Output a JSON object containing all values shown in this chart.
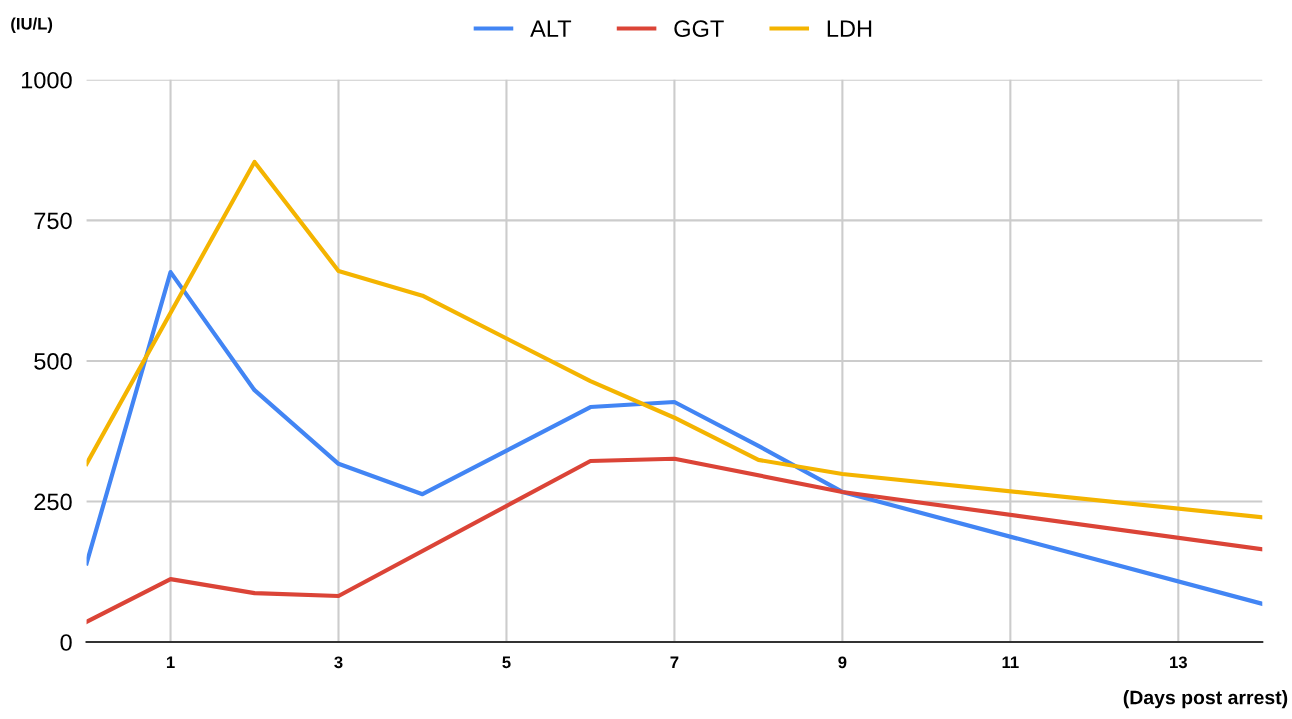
{
  "chart_data": {
    "type": "line",
    "ylabel": "(IU/L)",
    "xlabel": "(Days post arrest)",
    "xlim": [
      0,
      14
    ],
    "xticks": [
      1,
      3,
      5,
      7,
      9,
      11,
      13
    ],
    "ylim": [
      0,
      1000
    ],
    "yticks": [
      0,
      250,
      500,
      750,
      1000
    ],
    "grid": true,
    "legend": "top",
    "marker": "none",
    "line_style": "solid",
    "series": [
      {
        "name": "ALT",
        "color": "#4285f4",
        "x": [
          0,
          1,
          2,
          3,
          4,
          6,
          7,
          8,
          9,
          14
        ],
        "values": [
          140,
          658,
          448,
          317,
          263,
          418,
          427,
          349,
          267,
          68
        ]
      },
      {
        "name": "GGT",
        "color": "#db4437",
        "x": [
          0,
          1,
          2,
          3,
          6,
          7,
          9,
          14
        ],
        "values": [
          36,
          112,
          87,
          82,
          322,
          326,
          267,
          165
        ]
      },
      {
        "name": "LDH",
        "color": "#f4b400",
        "x": [
          0,
          2,
          3,
          4,
          6,
          7,
          8,
          9,
          14
        ],
        "values": [
          317,
          854,
          660,
          616,
          464,
          399,
          324,
          299,
          222
        ]
      }
    ]
  }
}
